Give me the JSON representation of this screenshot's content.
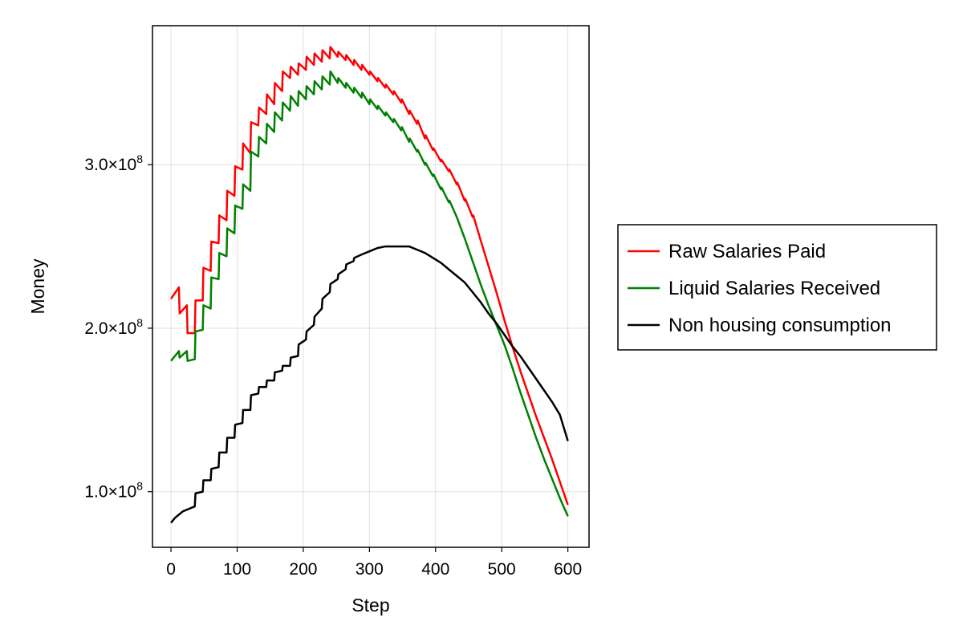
{
  "chart_data": {
    "type": "line",
    "xlabel": "Step",
    "ylabel": "Money",
    "xlim": [
      -28,
      632
    ],
    "ylim": [
      66000000,
      385000000
    ],
    "x_ticks": [
      0,
      100,
      200,
      300,
      400,
      500,
      600
    ],
    "x_tick_labels": [
      "0",
      "100",
      "200",
      "300",
      "400",
      "500",
      "600"
    ],
    "y_ticks": [
      100000000,
      200000000,
      300000000
    ],
    "y_tick_labels": [
      {
        "mantissa": "1.0×10",
        "exp": "8"
      },
      {
        "mantissa": "2.0×10",
        "exp": "8"
      },
      {
        "mantissa": "3.0×10",
        "exp": "8"
      }
    ],
    "grid": true,
    "legend_position": "right",
    "series": [
      {
        "name": "Raw Salaries Paid",
        "color": "#ff0000",
        "points": [
          [
            0,
            218000000
          ],
          [
            12,
            225000000
          ],
          [
            13,
            209000000
          ],
          [
            24,
            214000000
          ],
          [
            25,
            197000000
          ],
          [
            36,
            197000000
          ],
          [
            37,
            217000000
          ],
          [
            48,
            217000000
          ],
          [
            49,
            237000000
          ],
          [
            60,
            235000000
          ],
          [
            61,
            253000000
          ],
          [
            72,
            252000000
          ],
          [
            73,
            269000000
          ],
          [
            84,
            266000000
          ],
          [
            85,
            284000000
          ],
          [
            96,
            281000000
          ],
          [
            97,
            299000000
          ],
          [
            108,
            297000000
          ],
          [
            109,
            313000000
          ],
          [
            120,
            307000000
          ],
          [
            121,
            326000000
          ],
          [
            132,
            324000000
          ],
          [
            133,
            335000000
          ],
          [
            144,
            331000000
          ],
          [
            145,
            343000000
          ],
          [
            156,
            337000000
          ],
          [
            157,
            350000000
          ],
          [
            168,
            345000000
          ],
          [
            169,
            357000000
          ],
          [
            180,
            353000000
          ],
          [
            181,
            360000000
          ],
          [
            192,
            355000000
          ],
          [
            193,
            362000000
          ],
          [
            204,
            358000000
          ],
          [
            205,
            366000000
          ],
          [
            216,
            361000000
          ],
          [
            217,
            368000000
          ],
          [
            228,
            363000000
          ],
          [
            229,
            370000000
          ],
          [
            240,
            365000000
          ],
          [
            241,
            372000000
          ],
          [
            252,
            366000000
          ],
          [
            253,
            369000000
          ],
          [
            264,
            364000000
          ],
          [
            265,
            367000000
          ],
          [
            276,
            361000000
          ],
          [
            277,
            364000000
          ],
          [
            288,
            358000000
          ],
          [
            289,
            361000000
          ],
          [
            300,
            355000000
          ],
          [
            301,
            357000000
          ],
          [
            312,
            351000000
          ],
          [
            313,
            353000000
          ],
          [
            324,
            347000000
          ],
          [
            325,
            349000000
          ],
          [
            336,
            343000000
          ],
          [
            337,
            345000000
          ],
          [
            348,
            338000000
          ],
          [
            349,
            340000000
          ],
          [
            360,
            331000000
          ],
          [
            361,
            333000000
          ],
          [
            372,
            325000000
          ],
          [
            373,
            327000000
          ],
          [
            384,
            316000000
          ],
          [
            385,
            318000000
          ],
          [
            396,
            309000000
          ],
          [
            397,
            310000000
          ],
          [
            408,
            302000000
          ],
          [
            409,
            303000000
          ],
          [
            420,
            296000000
          ],
          [
            421,
            297000000
          ],
          [
            432,
            288000000
          ],
          [
            433,
            289000000
          ],
          [
            444,
            278000000
          ],
          [
            445,
            279000000
          ],
          [
            456,
            268000000
          ],
          [
            457,
            269000000
          ],
          [
            468,
            254000000
          ],
          [
            480,
            238000000
          ],
          [
            492,
            222000000
          ],
          [
            504,
            205000000
          ],
          [
            516,
            189000000
          ],
          [
            528,
            174000000
          ],
          [
            540,
            160000000
          ],
          [
            552,
            146000000
          ],
          [
            564,
            133000000
          ],
          [
            576,
            120000000
          ],
          [
            588,
            106000000
          ],
          [
            600,
            92000000
          ]
        ]
      },
      {
        "name": "Liquid Salaries Received",
        "color": "#008000",
        "points": [
          [
            0,
            180000000
          ],
          [
            12,
            186000000
          ],
          [
            13,
            182000000
          ],
          [
            24,
            186000000
          ],
          [
            25,
            180000000
          ],
          [
            36,
            181000000
          ],
          [
            37,
            198000000
          ],
          [
            48,
            199000000
          ],
          [
            49,
            214000000
          ],
          [
            60,
            212000000
          ],
          [
            61,
            231000000
          ],
          [
            72,
            230000000
          ],
          [
            73,
            246000000
          ],
          [
            84,
            244000000
          ],
          [
            85,
            261000000
          ],
          [
            96,
            258000000
          ],
          [
            97,
            275000000
          ],
          [
            108,
            273000000
          ],
          [
            109,
            288000000
          ],
          [
            120,
            284000000
          ],
          [
            121,
            308000000
          ],
          [
            132,
            305000000
          ],
          [
            133,
            317000000
          ],
          [
            144,
            313000000
          ],
          [
            145,
            325000000
          ],
          [
            156,
            320000000
          ],
          [
            157,
            332000000
          ],
          [
            168,
            327000000
          ],
          [
            169,
            338000000
          ],
          [
            180,
            333000000
          ],
          [
            181,
            342000000
          ],
          [
            192,
            336000000
          ],
          [
            193,
            345000000
          ],
          [
            204,
            340000000
          ],
          [
            205,
            348000000
          ],
          [
            216,
            343000000
          ],
          [
            217,
            351000000
          ],
          [
            228,
            346000000
          ],
          [
            229,
            354000000
          ],
          [
            240,
            349000000
          ],
          [
            241,
            357000000
          ],
          [
            252,
            350000000
          ],
          [
            253,
            353000000
          ],
          [
            264,
            347000000
          ],
          [
            265,
            350000000
          ],
          [
            276,
            344000000
          ],
          [
            277,
            347000000
          ],
          [
            288,
            341000000
          ],
          [
            289,
            344000000
          ],
          [
            300,
            337000000
          ],
          [
            301,
            340000000
          ],
          [
            312,
            334000000
          ],
          [
            313,
            336000000
          ],
          [
            324,
            330000000
          ],
          [
            325,
            332000000
          ],
          [
            336,
            326000000
          ],
          [
            337,
            328000000
          ],
          [
            348,
            321000000
          ],
          [
            349,
            323000000
          ],
          [
            360,
            314000000
          ],
          [
            361,
            316000000
          ],
          [
            372,
            308000000
          ],
          [
            373,
            309000000
          ],
          [
            384,
            300000000
          ],
          [
            385,
            301000000
          ],
          [
            396,
            293000000
          ],
          [
            397,
            294000000
          ],
          [
            408,
            285000000
          ],
          [
            409,
            286000000
          ],
          [
            420,
            277000000
          ],
          [
            421,
            278000000
          ],
          [
            432,
            268000000
          ],
          [
            444,
            255000000
          ],
          [
            456,
            241000000
          ],
          [
            468,
            227000000
          ],
          [
            480,
            214000000
          ],
          [
            492,
            202000000
          ],
          [
            504,
            190000000
          ],
          [
            516,
            176000000
          ],
          [
            528,
            161000000
          ],
          [
            540,
            147000000
          ],
          [
            552,
            133000000
          ],
          [
            564,
            120000000
          ],
          [
            576,
            108000000
          ],
          [
            588,
            96000000
          ],
          [
            600,
            85000000
          ]
        ]
      },
      {
        "name": "Non housing consumption",
        "color": "#000000",
        "points": [
          [
            0,
            81000000
          ],
          [
            6,
            84000000
          ],
          [
            12,
            86000000
          ],
          [
            18,
            88000000
          ],
          [
            24,
            89000000
          ],
          [
            30,
            90000000
          ],
          [
            36,
            91000000
          ],
          [
            37,
            99000000
          ],
          [
            48,
            100000000
          ],
          [
            49,
            107000000
          ],
          [
            60,
            107000000
          ],
          [
            61,
            114000000
          ],
          [
            72,
            115000000
          ],
          [
            73,
            124000000
          ],
          [
            84,
            124000000
          ],
          [
            85,
            133000000
          ],
          [
            96,
            133000000
          ],
          [
            97,
            141000000
          ],
          [
            108,
            142000000
          ],
          [
            109,
            150000000
          ],
          [
            120,
            150000000
          ],
          [
            121,
            159000000
          ],
          [
            132,
            160000000
          ],
          [
            133,
            164000000
          ],
          [
            144,
            164000000
          ],
          [
            145,
            168000000
          ],
          [
            156,
            168000000
          ],
          [
            157,
            173000000
          ],
          [
            168,
            174000000
          ],
          [
            169,
            177000000
          ],
          [
            180,
            177000000
          ],
          [
            181,
            182000000
          ],
          [
            192,
            183000000
          ],
          [
            193,
            190000000
          ],
          [
            204,
            193000000
          ],
          [
            205,
            198000000
          ],
          [
            216,
            202000000
          ],
          [
            217,
            207000000
          ],
          [
            228,
            212000000
          ],
          [
            229,
            218000000
          ],
          [
            240,
            222000000
          ],
          [
            241,
            227000000
          ],
          [
            252,
            230000000
          ],
          [
            253,
            233000000
          ],
          [
            264,
            236000000
          ],
          [
            265,
            239000000
          ],
          [
            276,
            241000000
          ],
          [
            277,
            243000000
          ],
          [
            288,
            245000000
          ],
          [
            300,
            247000000
          ],
          [
            312,
            249000000
          ],
          [
            324,
            250000000
          ],
          [
            336,
            250000000
          ],
          [
            348,
            250000000
          ],
          [
            360,
            250000000
          ],
          [
            372,
            248000000
          ],
          [
            384,
            246000000
          ],
          [
            396,
            243000000
          ],
          [
            408,
            240000000
          ],
          [
            420,
            236000000
          ],
          [
            432,
            232000000
          ],
          [
            444,
            228000000
          ],
          [
            456,
            222000000
          ],
          [
            468,
            216000000
          ],
          [
            480,
            209000000
          ],
          [
            492,
            203000000
          ],
          [
            504,
            196000000
          ],
          [
            516,
            189000000
          ],
          [
            528,
            183000000
          ],
          [
            540,
            176000000
          ],
          [
            552,
            169000000
          ],
          [
            564,
            162000000
          ],
          [
            576,
            155000000
          ],
          [
            588,
            147000000
          ],
          [
            600,
            131000000
          ]
        ]
      }
    ]
  }
}
